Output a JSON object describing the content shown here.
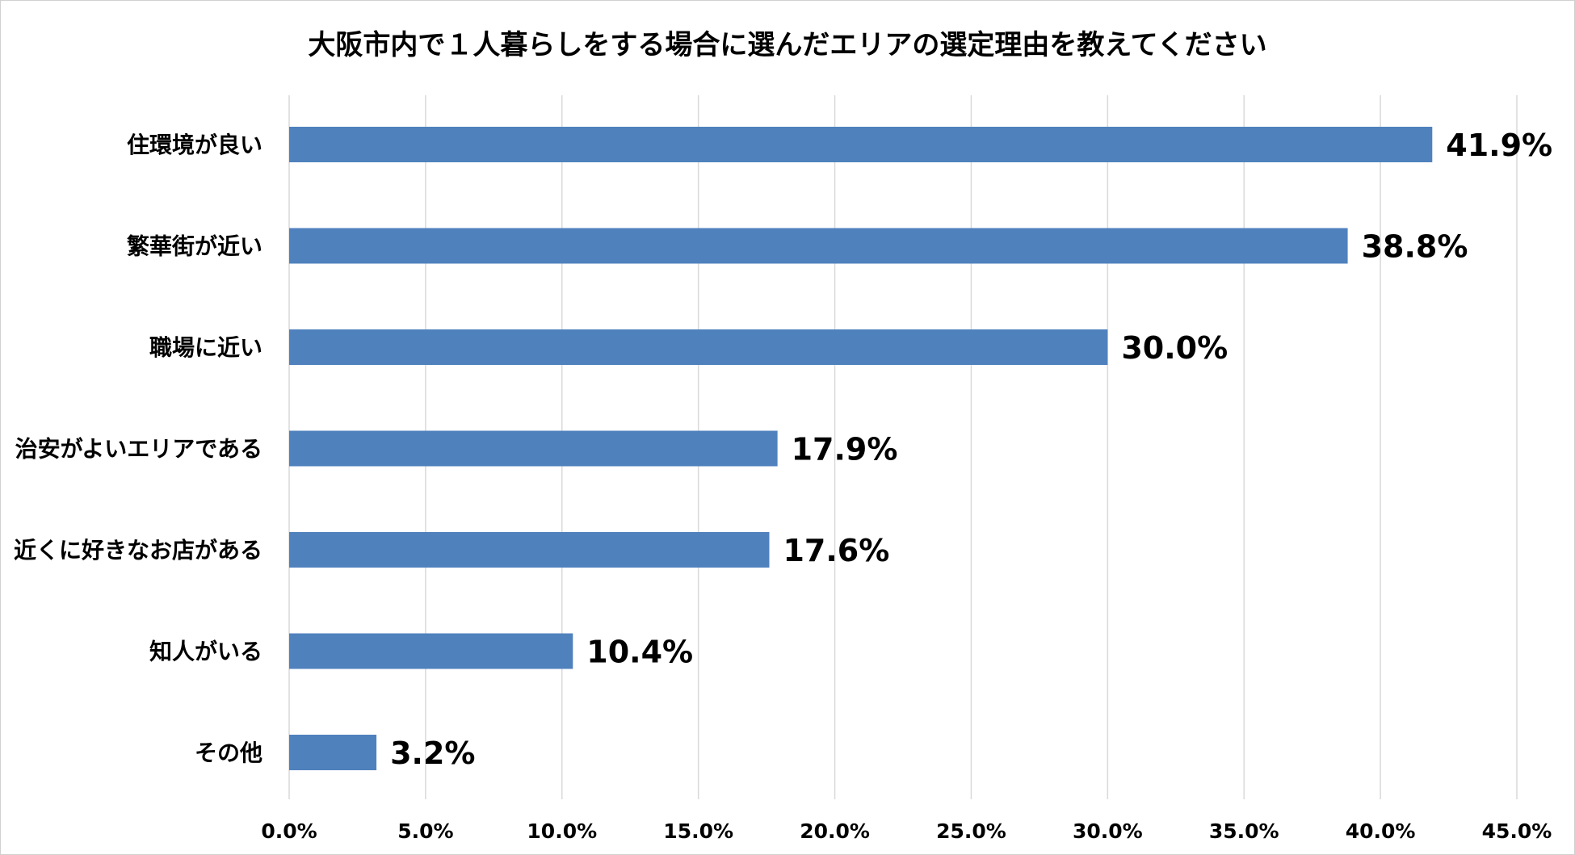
{
  "chart_data": {
    "type": "bar",
    "orientation": "horizontal",
    "title": "大阪市内で１人暮らしをする場合に選んだエリアの選定理由を教えてください",
    "categories": [
      "住環境が良い",
      "繁華街が近い",
      "職場に近い",
      "治安がよいエリアである",
      "近くに好きなお店がある",
      "知人がいる",
      "その他"
    ],
    "values": [
      41.9,
      38.8,
      30.0,
      17.9,
      17.6,
      10.4,
      3.2
    ],
    "value_labels": [
      "41.9%",
      "38.8%",
      "30.0%",
      "17.9%",
      "17.6%",
      "10.4%",
      "3.2%"
    ],
    "xlim": [
      0,
      45
    ],
    "x_ticks": [
      0,
      5,
      10,
      15,
      20,
      25,
      30,
      35,
      40,
      45
    ],
    "x_tick_labels": [
      "0.0%",
      "5.0%",
      "10.0%",
      "15.0%",
      "20.0%",
      "25.0%",
      "30.0%",
      "35.0%",
      "40.0%",
      "45.0%"
    ],
    "xlabel": "",
    "ylabel": "",
    "grid": "vertical",
    "legend": "none",
    "bar_color": "#4f81bd"
  }
}
